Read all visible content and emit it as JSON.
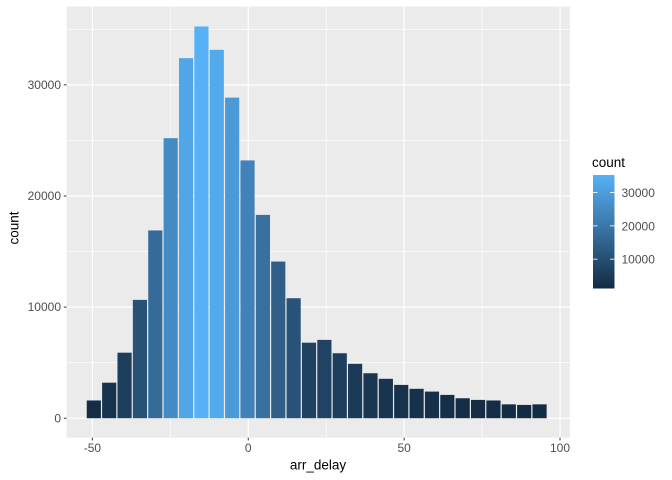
{
  "chart_data": {
    "type": "bar",
    "subtype": "histogram",
    "title": "",
    "xlabel": "arr_delay",
    "ylabel": "count",
    "bin_start": -52,
    "bin_width": 4.93,
    "values": [
      1600,
      3200,
      5900,
      10650,
      16900,
      25200,
      32400,
      35250,
      33150,
      28850,
      23200,
      18300,
      14100,
      10800,
      6800,
      7050,
      5850,
      4900,
      4050,
      3550,
      3000,
      2650,
      2400,
      2100,
      1800,
      1650,
      1600,
      1250,
      1200,
      1250
    ],
    "xlim": [
      -58.3,
      103.2
    ],
    "ylim": [
      -1750,
      37050
    ],
    "x_ticks": [
      -50,
      0,
      50,
      100
    ],
    "x_minor_ticks": [
      -25,
      25,
      75
    ],
    "y_ticks": [
      0,
      10000,
      20000,
      30000
    ],
    "y_minor_ticks": [
      5000,
      15000,
      25000,
      35000
    ],
    "grid": true,
    "panel_bg": "#EBEBEB",
    "grid_color": "#FFFFFF",
    "tick_mark_color": "#333333",
    "tick_label_color": "#4D4D4D",
    "fill_low_color": "#132B43",
    "fill_mid_color": "#38709F",
    "fill_high_color": "#56B1F7",
    "fill_scale_min": 1200,
    "fill_scale_max": 35250,
    "legend": {
      "title": "count",
      "position": "right",
      "tick_values": [
        30000,
        20000,
        10000
      ],
      "tick_labels": [
        "30000",
        "20000",
        "10000"
      ]
    }
  }
}
